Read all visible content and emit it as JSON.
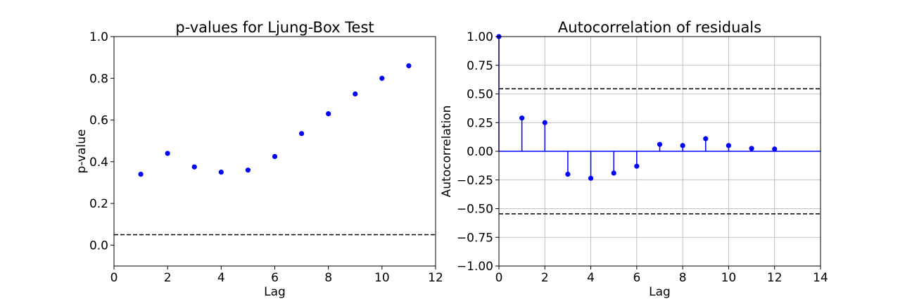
{
  "chart_data": [
    {
      "type": "scatter",
      "title": "p-values for Ljung-Box Test",
      "xlabel": "Lag",
      "ylabel": "p-value",
      "xlim": [
        0,
        12
      ],
      "ylim": [
        -0.1,
        1.0
      ],
      "xticks": [
        "0",
        "2",
        "4",
        "6",
        "8",
        "10",
        "12"
      ],
      "yticks": [
        "0.0",
        "0.2",
        "0.4",
        "0.6",
        "0.8",
        "1.0"
      ],
      "grid": false,
      "marker_color": "#0000ff",
      "reference_line": {
        "y": 0.05,
        "style": "dashed",
        "color": "#000000"
      },
      "x": [
        1,
        2,
        3,
        4,
        5,
        6,
        7,
        8,
        9,
        10,
        11
      ],
      "y": [
        0.34,
        0.44,
        0.375,
        0.35,
        0.36,
        0.425,
        0.535,
        0.63,
        0.725,
        0.8,
        0.86
      ]
    },
    {
      "type": "stem",
      "title": "Autocorrelation of residuals",
      "xlabel": "Lag",
      "ylabel": "Autocorrelation",
      "xlim": [
        0,
        14
      ],
      "ylim": [
        -1.0,
        1.0
      ],
      "xticks": [
        "0",
        "2",
        "4",
        "6",
        "8",
        "10",
        "12",
        "14"
      ],
      "yticks": [
        "−1.00",
        "−0.75",
        "−0.50",
        "−0.25",
        "0.00",
        "0.25",
        "0.50",
        "0.75",
        "1.00"
      ],
      "grid": true,
      "marker_color": "#0000ff",
      "baseline": 0,
      "confidence_band": {
        "upper": 0.545,
        "lower": -0.545,
        "style": "dashed",
        "color": "#000000"
      },
      "x": [
        0,
        1,
        2,
        3,
        4,
        5,
        6,
        7,
        8,
        9,
        10,
        11,
        12
      ],
      "y": [
        1.0,
        0.29,
        0.25,
        -0.2,
        -0.235,
        -0.19,
        -0.13,
        0.06,
        0.05,
        0.11,
        0.05,
        0.025,
        0.02
      ]
    }
  ]
}
